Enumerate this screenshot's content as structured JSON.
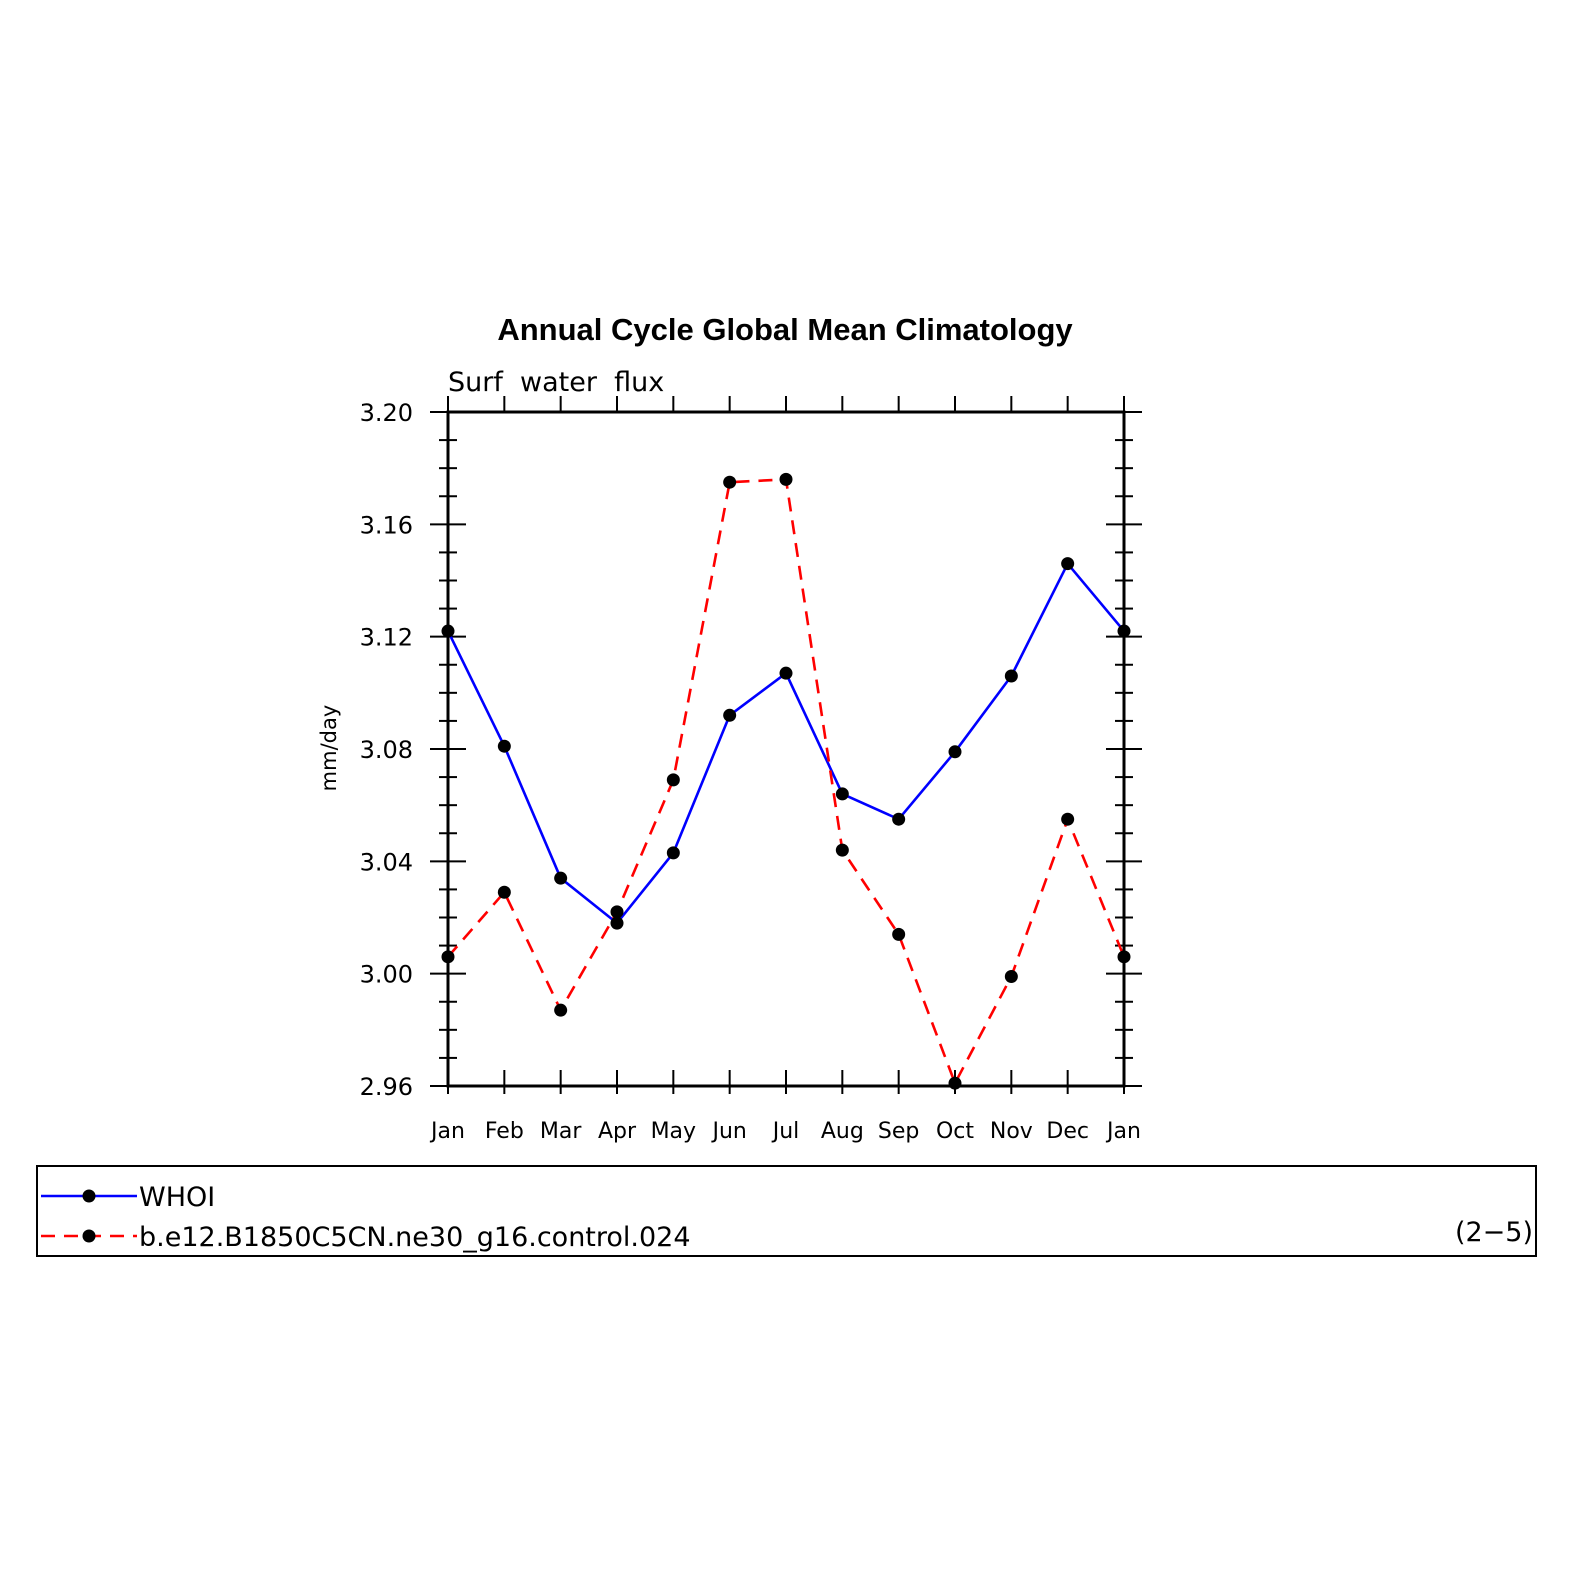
{
  "chart_data": {
    "type": "line",
    "title": "Annual Cycle Global Mean Climatology",
    "subtitle": "Surf  water  flux",
    "ylabel": "mm/day",
    "xlabel": "",
    "categories": [
      "Jan",
      "Feb",
      "Mar",
      "Apr",
      "May",
      "Jun",
      "Jul",
      "Aug",
      "Sep",
      "Oct",
      "Nov",
      "Dec",
      "Jan"
    ],
    "ylim": [
      2.96,
      3.2
    ],
    "yticks": [
      2.96,
      3.0,
      3.04,
      3.08,
      3.12,
      3.16,
      3.2
    ],
    "ytick_labels": [
      "2.96",
      "3.00",
      "3.04",
      "3.08",
      "3.12",
      "3.16",
      "3.20"
    ],
    "series": [
      {
        "name": "WHOI",
        "color": "#0000ff",
        "dash": "solid",
        "values": [
          3.122,
          3.081,
          3.034,
          3.018,
          3.043,
          3.092,
          3.107,
          3.064,
          3.055,
          3.079,
          3.106,
          3.146,
          3.122
        ]
      },
      {
        "name": "b.e12.B1850C5CN.ne30_g16.control.024",
        "color": "#ff0000",
        "dash": "dashed",
        "values": [
          3.006,
          3.029,
          2.987,
          3.022,
          3.069,
          3.175,
          3.176,
          3.044,
          3.014,
          2.961,
          2.999,
          3.055,
          3.006
        ]
      }
    ],
    "legend_note": "(2−5)",
    "legend_position": "bottom"
  }
}
